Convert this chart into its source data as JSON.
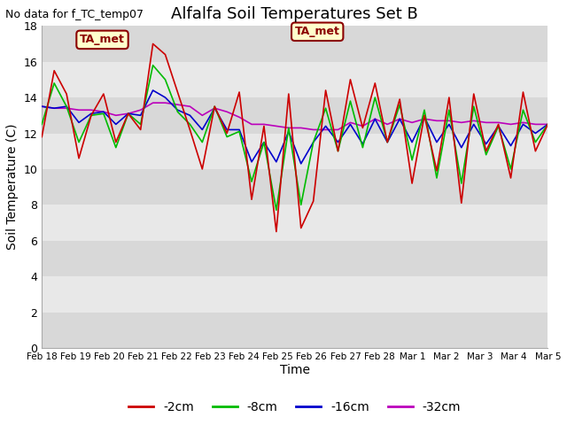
{
  "title": "Alfalfa Soil Temperatures Set B",
  "xlabel": "Time",
  "ylabel": "Soil Temperature (C)",
  "no_data_text": "No data for f_TC_temp07",
  "ta_met_label": "TA_met",
  "ylim": [
    0,
    18
  ],
  "yticks": [
    0,
    2,
    4,
    6,
    8,
    10,
    12,
    14,
    16,
    18
  ],
  "background_color": "#ffffff",
  "x_labels": [
    "Feb 18",
    "Feb 19",
    "Feb 20",
    "Feb 21",
    "Feb 22",
    "Feb 23",
    "Feb 24",
    "Feb 25",
    "Feb 26",
    "Feb 27",
    "Feb 28",
    "Mar 1",
    "Mar 2",
    "Mar 3",
    "Mar 4",
    "Mar 5"
  ],
  "band_colors": [
    "#d8d8d8",
    "#e8e8e8"
  ],
  "series": {
    "2cm": {
      "color": "#cc0000",
      "label": "-2cm",
      "values": [
        11.8,
        15.5,
        14.2,
        10.6,
        13.0,
        14.2,
        11.5,
        13.1,
        12.2,
        17.0,
        16.4,
        14.3,
        12.2,
        10.0,
        13.5,
        12.0,
        14.3,
        8.3,
        12.4,
        6.5,
        14.2,
        6.7,
        8.2,
        14.4,
        11.0,
        15.0,
        12.3,
        14.8,
        11.5,
        13.9,
        9.2,
        13.0,
        9.9,
        14.0,
        8.1,
        14.2,
        11.0,
        12.5,
        9.5,
        14.3,
        11.0,
        12.5
      ]
    },
    "8cm": {
      "color": "#00bb00",
      "label": "-8cm",
      "values": [
        12.5,
        14.8,
        13.5,
        11.5,
        13.0,
        13.1,
        11.2,
        13.1,
        12.5,
        15.8,
        15.0,
        13.2,
        12.5,
        11.5,
        13.5,
        11.8,
        12.1,
        9.3,
        11.5,
        7.7,
        12.3,
        8.0,
        11.5,
        13.4,
        11.0,
        13.8,
        11.2,
        14.0,
        11.5,
        13.6,
        10.5,
        13.3,
        9.5,
        13.3,
        9.2,
        13.5,
        10.8,
        12.4,
        10.0,
        13.3,
        11.5,
        12.5
      ]
    },
    "16cm": {
      "color": "#0000cc",
      "label": "-16cm",
      "values": [
        13.5,
        13.4,
        13.5,
        12.6,
        13.1,
        13.2,
        12.5,
        13.1,
        13.0,
        14.4,
        14.0,
        13.3,
        13.0,
        12.2,
        13.4,
        12.2,
        12.2,
        10.4,
        11.5,
        10.4,
        12.1,
        10.3,
        11.5,
        12.4,
        11.5,
        12.5,
        11.4,
        12.8,
        11.5,
        12.8,
        11.5,
        12.9,
        11.5,
        12.5,
        11.2,
        12.5,
        11.4,
        12.4,
        11.3,
        12.5,
        12.0,
        12.5
      ]
    },
    "32cm": {
      "color": "#bb00bb",
      "label": "-32cm",
      "values": [
        13.5,
        13.4,
        13.4,
        13.3,
        13.3,
        13.2,
        13.0,
        13.1,
        13.3,
        13.7,
        13.7,
        13.6,
        13.5,
        13.0,
        13.4,
        13.2,
        12.9,
        12.5,
        12.5,
        12.4,
        12.3,
        12.3,
        12.2,
        12.2,
        12.2,
        12.6,
        12.4,
        12.8,
        12.5,
        12.8,
        12.6,
        12.8,
        12.7,
        12.7,
        12.6,
        12.7,
        12.6,
        12.6,
        12.5,
        12.6,
        12.5,
        12.5
      ]
    }
  },
  "legend_items": [
    {
      "label": "-2cm",
      "color": "#cc0000"
    },
    {
      "label": "-8cm",
      "color": "#00bb00"
    },
    {
      "label": "-16cm",
      "color": "#0000cc"
    },
    {
      "label": "-32cm",
      "color": "#bb00bb"
    }
  ],
  "figsize": [
    6.4,
    4.8
  ],
  "dpi": 100
}
